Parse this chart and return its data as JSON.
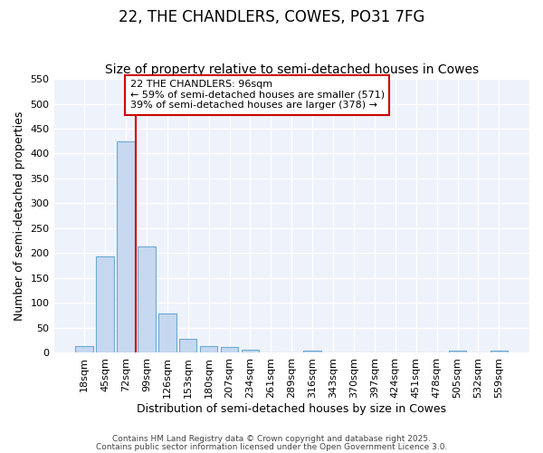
{
  "title": "22, THE CHANDLERS, COWES, PO31 7FG",
  "subtitle": "Size of property relative to semi-detached houses in Cowes",
  "xlabel": "Distribution of semi-detached houses by size in Cowes",
  "ylabel": "Number of semi-detached properties",
  "categories": [
    "18sqm",
    "45sqm",
    "72sqm",
    "99sqm",
    "126sqm",
    "153sqm",
    "180sqm",
    "207sqm",
    "234sqm",
    "261sqm",
    "289sqm",
    "316sqm",
    "343sqm",
    "370sqm",
    "397sqm",
    "424sqm",
    "451sqm",
    "478sqm",
    "505sqm",
    "532sqm",
    "559sqm"
  ],
  "values": [
    13,
    193,
    425,
    213,
    78,
    28,
    13,
    10,
    5,
    0,
    0,
    4,
    0,
    0,
    0,
    0,
    0,
    0,
    4,
    0,
    4
  ],
  "bar_color": "#c5d8f0",
  "bar_edge_color": "#6aaad4",
  "subject_line_color": "#cc0000",
  "subject_line_index": 3,
  "annotation_text": "22 THE CHANDLERS: 96sqm\n← 59% of semi-detached houses are smaller (571)\n39% of semi-detached houses are larger (378) →",
  "annotation_box_edgecolor": "#cc0000",
  "ylim": [
    0,
    550
  ],
  "yticks": [
    0,
    50,
    100,
    150,
    200,
    250,
    300,
    350,
    400,
    450,
    500,
    550
  ],
  "plot_bg_color": "#eef2fb",
  "grid_color": "#ffffff",
  "footer_line1": "Contains HM Land Registry data © Crown copyright and database right 2025.",
  "footer_line2": "Contains public sector information licensed under the Open Government Licence 3.0.",
  "title_fontsize": 12,
  "subtitle_fontsize": 10,
  "tick_fontsize": 8,
  "ylabel_fontsize": 9,
  "xlabel_fontsize": 9,
  "annotation_fontsize": 8
}
